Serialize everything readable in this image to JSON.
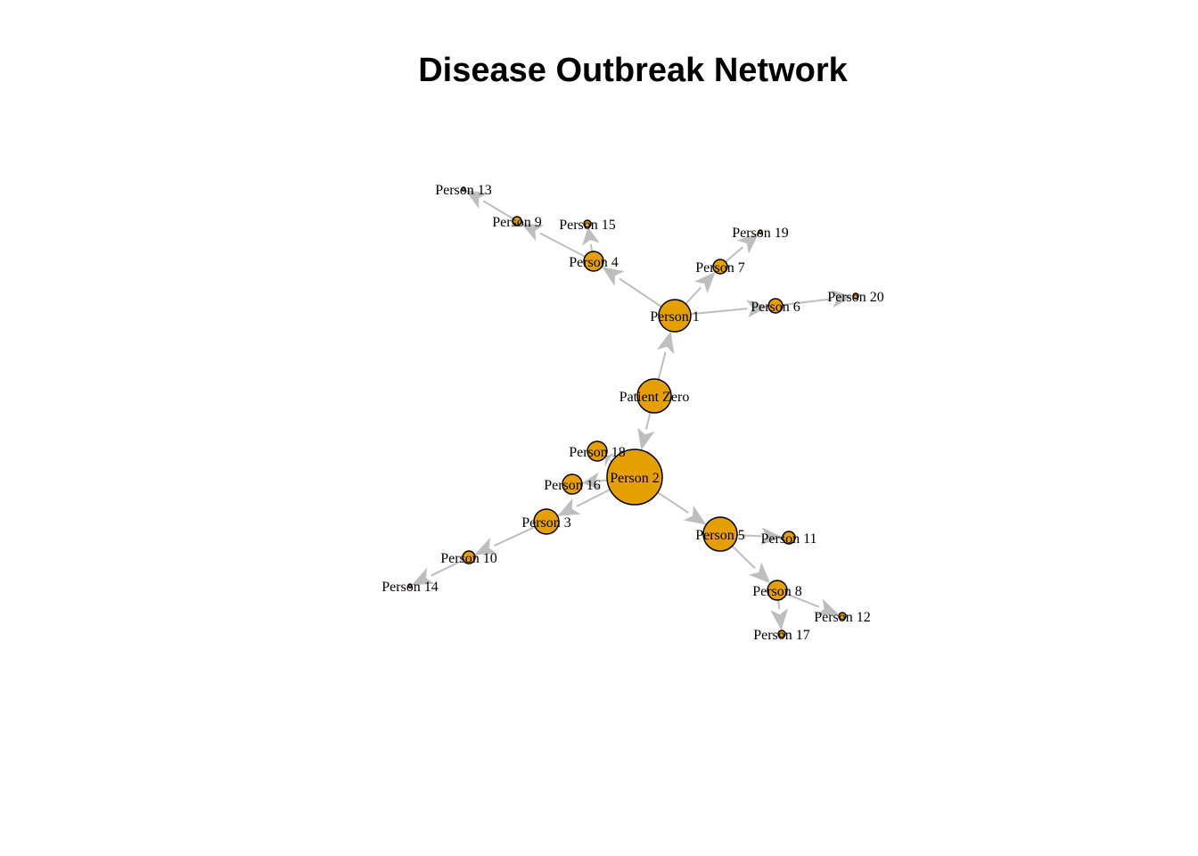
{
  "title": "Disease Outbreak Network",
  "colors": {
    "node_fill": "#E69F00",
    "node_stroke": "#000000",
    "edge": "#BEBEBE",
    "background": "#FFFFFF"
  },
  "nodes": [
    {
      "id": "pz",
      "label": "Patient Zero"
    },
    {
      "id": "p1",
      "label": "Person 1"
    },
    {
      "id": "p2",
      "label": "Person 2"
    },
    {
      "id": "p3",
      "label": "Person 3"
    },
    {
      "id": "p4",
      "label": "Person 4"
    },
    {
      "id": "p5",
      "label": "Person 5"
    },
    {
      "id": "p6",
      "label": "Person 6"
    },
    {
      "id": "p7",
      "label": "Person 7"
    },
    {
      "id": "p8",
      "label": "Person 8"
    },
    {
      "id": "p9",
      "label": "Person 9"
    },
    {
      "id": "p10",
      "label": "Person 10"
    },
    {
      "id": "p11",
      "label": "Person 11"
    },
    {
      "id": "p12",
      "label": "Person 12"
    },
    {
      "id": "p13",
      "label": "Person 13"
    },
    {
      "id": "p14",
      "label": "Person 14"
    },
    {
      "id": "p15",
      "label": "Person 15"
    },
    {
      "id": "p16",
      "label": "Person 16"
    },
    {
      "id": "p17",
      "label": "Person 17"
    },
    {
      "id": "p18",
      "label": "Person 18"
    },
    {
      "id": "p19",
      "label": "Person 19"
    },
    {
      "id": "p20",
      "label": "Person 20"
    }
  ],
  "edges": [
    {
      "from": "pz",
      "to": "p1"
    },
    {
      "from": "pz",
      "to": "p2"
    },
    {
      "from": "p1",
      "to": "p4"
    },
    {
      "from": "p1",
      "to": "p6"
    },
    {
      "from": "p1",
      "to": "p7"
    },
    {
      "from": "p2",
      "to": "p3"
    },
    {
      "from": "p2",
      "to": "p5"
    },
    {
      "from": "p2",
      "to": "p16"
    },
    {
      "from": "p2",
      "to": "p18"
    },
    {
      "from": "p3",
      "to": "p10"
    },
    {
      "from": "p4",
      "to": "p9"
    },
    {
      "from": "p4",
      "to": "p15"
    },
    {
      "from": "p5",
      "to": "p8"
    },
    {
      "from": "p5",
      "to": "p11"
    },
    {
      "from": "p6",
      "to": "p20"
    },
    {
      "from": "p7",
      "to": "p19"
    },
    {
      "from": "p8",
      "to": "p12"
    },
    {
      "from": "p8",
      "to": "p17"
    },
    {
      "from": "p9",
      "to": "p13"
    },
    {
      "from": "p10",
      "to": "p14"
    }
  ]
}
